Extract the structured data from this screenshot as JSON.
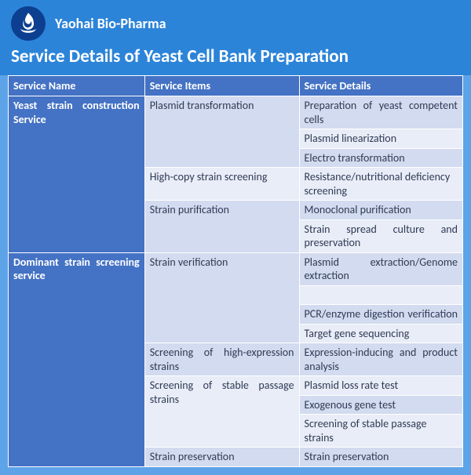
{
  "brand": {
    "company_name": "Yaohai Bio-Pharma",
    "page_title": "Service Details of Yeast Cell Bank Preparation",
    "colors": {
      "page_bg": "#5da3e8",
      "header_bg": "#2c84d8",
      "table_header_bg": "#4472c4",
      "row_alt0": "#d2dbef",
      "row_alt1": "#e9edf7",
      "border": "#ffffff",
      "text_light": "#ffffff",
      "text_dark": "#2f3a55"
    }
  },
  "table": {
    "columns": [
      "Service Name",
      "Service Items",
      "Service Details"
    ],
    "column_widths_pct": [
      30,
      34,
      36
    ],
    "sections": [
      {
        "name": "Yeast strain construction Service",
        "name_justify": true,
        "items": [
          {
            "item": "Plasmid transformation",
            "details": [
              "Preparation of yeast competent cells",
              "Plasmid linearization",
              "Electro transformation"
            ],
            "details_justify": [
              true,
              false,
              false
            ]
          },
          {
            "item": "High-copy strain screening",
            "details": [
              "Resistance/nutritional deficiency screening"
            ],
            "details_justify": [
              false
            ]
          },
          {
            "item": "Strain purification",
            "details": [
              "Monoclonal purification",
              "Strain spread culture and preservation"
            ],
            "details_justify": [
              false,
              true
            ]
          }
        ]
      },
      {
        "name": "Dominant strain screening service",
        "name_justify": true,
        "items": [
          {
            "item": "Strain verification",
            "details": [
              "Plasmid extraction/Genome extraction",
              "PCR/enzyme digestion verification",
              "Target gene sequencing"
            ],
            "details_justify": [
              true,
              true,
              false
            ],
            "blank_row_after_first": true
          },
          {
            "item": "Screening of high-expression strains",
            "item_justify": true,
            "details": [
              "Expression-inducing and product analysis"
            ],
            "details_justify": [
              true
            ]
          },
          {
            "item": "Screening of stable passage strains",
            "item_justify": true,
            "details": [
              "Plasmid loss rate test",
              "Exogenous gene test",
              "Screening of stable passage strains"
            ],
            "details_justify": [
              false,
              false,
              false
            ]
          },
          {
            "item": "Strain preservation",
            "details": [
              "Strain preservation"
            ],
            "details_justify": [
              false
            ]
          }
        ]
      }
    ]
  }
}
